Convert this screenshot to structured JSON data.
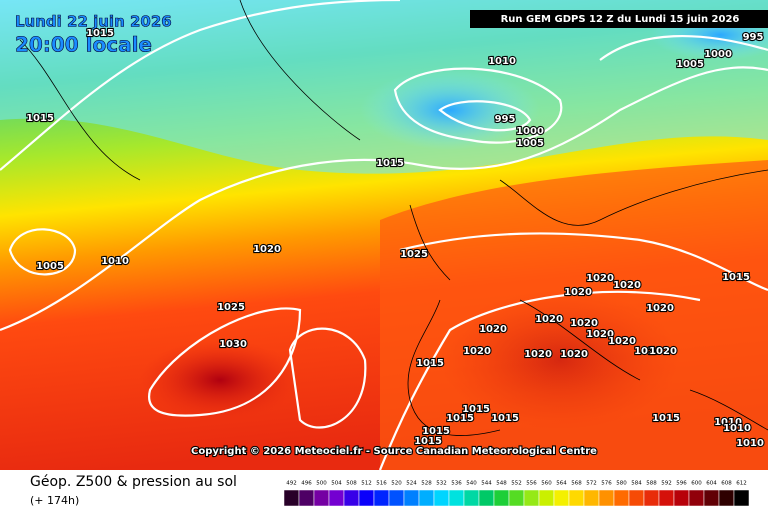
{
  "header": {
    "date": "Lundi 22 juin 2026",
    "time": "20:00 locale",
    "run": "Run GEM GDPS 12 Z du Lundi 15 juin 2026"
  },
  "isobar_labels": [
    "1015",
    "1015",
    "1010",
    "995",
    "1000",
    "1005",
    "1015",
    "995",
    "1000",
    "1005",
    "1005",
    "1010",
    "1020",
    "1025",
    "1025",
    "1030",
    "1015",
    "1020",
    "1020",
    "1020",
    "1020",
    "1020",
    "1020",
    "1020",
    "1020",
    "1020",
    "1020",
    "1020",
    "1020",
    "1020",
    "1020",
    "1015",
    "1015",
    "1015",
    "1015",
    "1015",
    "1015",
    "1015",
    "1010",
    "1010",
    "1010"
  ],
  "copyright": "Copyright © 2026 Meteociel.fr - Source Canadian Meteorological Centre",
  "footer": {
    "title": "Géop. Z500 & pression au sol",
    "lead": "(+ 174h)"
  },
  "scale": [
    "492",
    "496",
    "500",
    "504",
    "508",
    "512",
    "516",
    "520",
    "524",
    "528",
    "532",
    "536",
    "540",
    "544",
    "548",
    "552",
    "556",
    "560",
    "564",
    "568",
    "572",
    "576",
    "580",
    "584",
    "588",
    "592",
    "596",
    "600",
    "604",
    "608",
    "612"
  ]
}
